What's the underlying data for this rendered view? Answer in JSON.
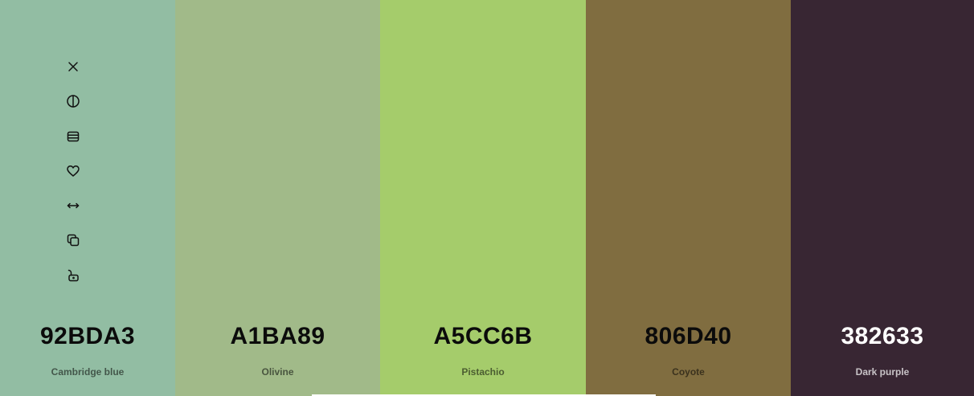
{
  "palette": {
    "colors": [
      {
        "hex": "92BDA3",
        "name": "Cambridge blue",
        "color": "#92BDA3"
      },
      {
        "hex": "A1BA89",
        "name": "Olivine",
        "color": "#A1BA89"
      },
      {
        "hex": "A5CC6B",
        "name": "Pistachio",
        "color": "#A5CC6B"
      },
      {
        "hex": "806D40",
        "name": "Coyote",
        "color": "#806D40"
      },
      {
        "hex": "382633",
        "name": "Dark purple",
        "color": "#382633"
      }
    ]
  },
  "toolbar": {
    "icons": [
      "close-icon",
      "contrast-icon",
      "shades-icon",
      "heart-icon",
      "drag-icon",
      "copy-icon",
      "unlock-icon"
    ]
  }
}
